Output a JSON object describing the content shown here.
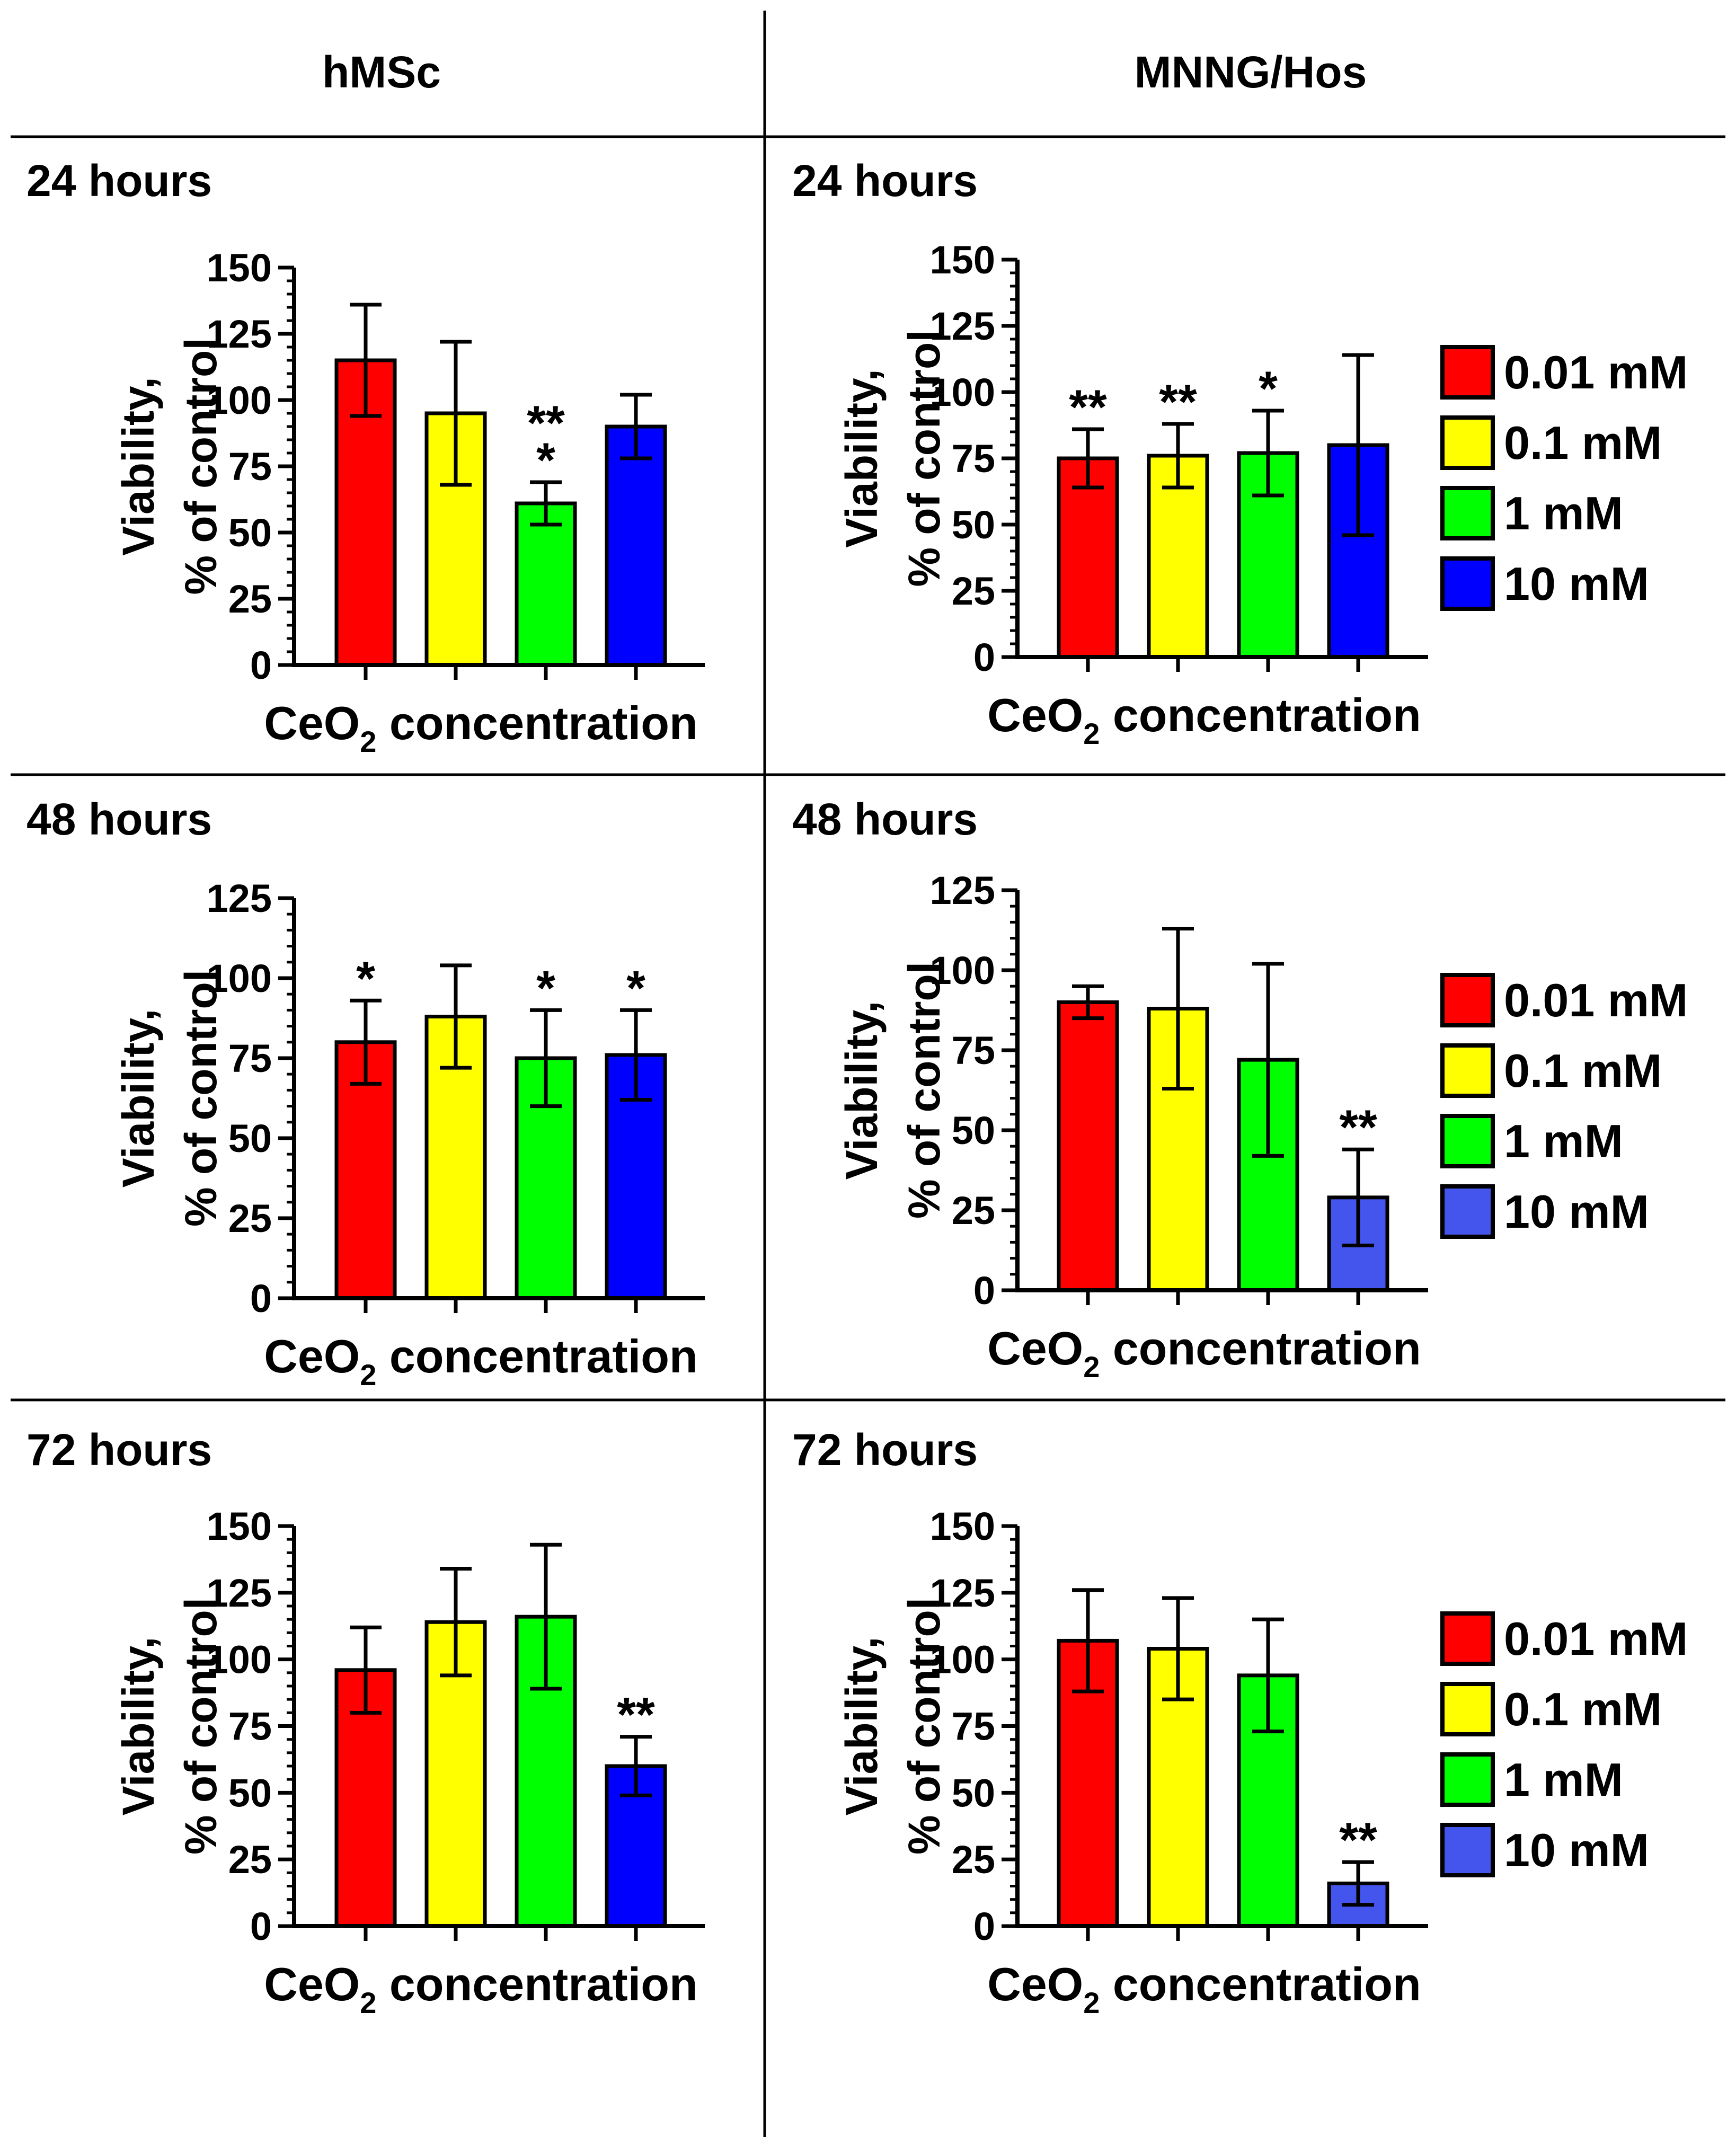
{
  "columns": [
    "hMSc",
    "MNNG/Hos"
  ],
  "x_label_main": "CeO",
  "x_label_sub": "2",
  "x_label_rest": " concentration",
  "y_label_line1": "Viability,",
  "y_label_line2": "% of control",
  "legend": {
    "entries": [
      "0.01 mM",
      "0.1 mM",
      "1 mM",
      "10 mM"
    ],
    "colors": [
      "#ff0000",
      "#ffff00",
      "#00ff00",
      "#0000ff"
    ]
  },
  "chart_data": [
    {
      "type": "bar",
      "column": "hMSc",
      "title": "24 hours",
      "categories": [
        "0.01 mM",
        "0.1 mM",
        "1 mM",
        "10 mM"
      ],
      "values": [
        115,
        95,
        61,
        90
      ],
      "errors": [
        21,
        27,
        8,
        12
      ],
      "annotations": [
        "",
        "",
        "**\n*",
        ""
      ],
      "colors": [
        "#ff0000",
        "#ffff00",
        "#00ff00",
        "#0000ff"
      ],
      "ylim": [
        0,
        150
      ],
      "yticks": [
        0,
        25,
        50,
        75,
        100,
        125,
        150
      ],
      "legend": false
    },
    {
      "type": "bar",
      "column": "MNNG/Hos",
      "title": "24 hours",
      "categories": [
        "0.01 mM",
        "0.1 mM",
        "1 mM",
        "10 mM"
      ],
      "values": [
        75,
        76,
        77,
        80
      ],
      "errors": [
        11,
        12,
        16,
        34
      ],
      "annotations": [
        "**",
        "**",
        "*",
        ""
      ],
      "colors": [
        "#ff0000",
        "#ffff00",
        "#00ff00",
        "#0000ff"
      ],
      "ylim": [
        0,
        150
      ],
      "yticks": [
        0,
        25,
        50,
        75,
        100,
        125,
        150
      ],
      "legend": true
    },
    {
      "type": "bar",
      "column": "hMSc",
      "title": "48 hours",
      "categories": [
        "0.01 mM",
        "0.1 mM",
        "1 mM",
        "10 mM"
      ],
      "values": [
        80,
        88,
        75,
        76
      ],
      "errors": [
        13,
        16,
        15,
        14
      ],
      "annotations": [
        "*",
        "",
        "*",
        "*"
      ],
      "colors": [
        "#ff0000",
        "#ffff00",
        "#00ff00",
        "#0000ff"
      ],
      "ylim": [
        0,
        125
      ],
      "yticks": [
        0,
        25,
        50,
        75,
        100,
        125
      ],
      "legend": false
    },
    {
      "type": "bar",
      "column": "MNNG/Hos",
      "title": "48 hours",
      "categories": [
        "0.01 mM",
        "0.1 mM",
        "1 mM",
        "10 mM"
      ],
      "values": [
        90,
        88,
        72,
        29
      ],
      "errors": [
        5,
        25,
        30,
        15
      ],
      "annotations": [
        "",
        "",
        "",
        "**"
      ],
      "colors": [
        "#ff0000",
        "#ffff00",
        "#00ff00",
        "#4455ee"
      ],
      "ylim": [
        0,
        125
      ],
      "yticks": [
        0,
        25,
        50,
        75,
        100,
        125
      ],
      "legend": true
    },
    {
      "type": "bar",
      "column": "hMSc",
      "title": "72 hours",
      "categories": [
        "0.01 mM",
        "0.1 mM",
        "1 mM",
        "10 mM"
      ],
      "values": [
        96,
        114,
        116,
        60
      ],
      "errors": [
        16,
        20,
        27,
        11
      ],
      "annotations": [
        "",
        "",
        "",
        "**"
      ],
      "colors": [
        "#ff0000",
        "#ffff00",
        "#00ff00",
        "#0000ff"
      ],
      "ylim": [
        0,
        150
      ],
      "yticks": [
        0,
        25,
        50,
        75,
        100,
        125,
        150
      ],
      "legend": false
    },
    {
      "type": "bar",
      "column": "MNNG/Hos",
      "title": "72 hours",
      "categories": [
        "0.01 mM",
        "0.1 mM",
        "1 mM",
        "10 mM"
      ],
      "values": [
        107,
        104,
        94,
        16
      ],
      "errors": [
        19,
        19,
        21,
        8
      ],
      "annotations": [
        "",
        "",
        "",
        "**"
      ],
      "colors": [
        "#ff0000",
        "#ffff00",
        "#00ff00",
        "#4455ee"
      ],
      "ylim": [
        0,
        150
      ],
      "yticks": [
        0,
        25,
        50,
        75,
        100,
        125,
        150
      ],
      "legend": true
    }
  ]
}
